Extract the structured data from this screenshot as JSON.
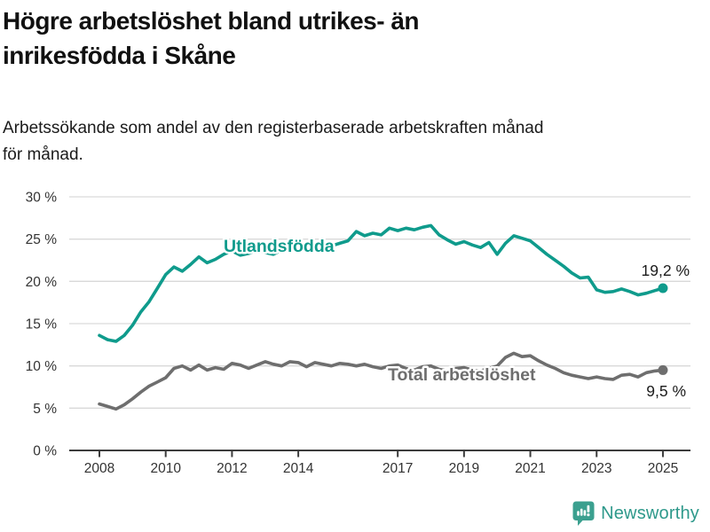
{
  "header": {
    "title_lines": [
      "Högre arbetslöshet bland utrikes- än",
      "inrikesfödda i Skåne"
    ],
    "subtitle_lines": [
      "Arbetssökande som andel av den registerbaserade arbetskraften månad",
      "för månad."
    ]
  },
  "footer": {
    "brand": "Newsworthy"
  },
  "colors": {
    "accent_teal": "#0f9b8c",
    "line_gray": "#6e6e6e",
    "logo_teal": "#3ba08f",
    "grid": "#d9d9d9",
    "axis": "#3c3c3c",
    "text_dark": "#1b1b1b"
  },
  "chart_data": {
    "type": "line",
    "title": "Högre arbetslöshet bland utrikes- än inrikesfödda i Skåne",
    "subtitle": "Arbetssökande som andel av den registerbaserade arbetskraften månad för månad.",
    "grid": "horizontal",
    "legend": "inline-labels",
    "x_axis": {
      "range": [
        2008,
        2025
      ],
      "ticks": [
        2008,
        2010,
        2012,
        2014,
        2017,
        2019,
        2021,
        2023,
        2025
      ],
      "tick_labels": [
        "2008",
        "2010",
        "2012",
        "2014",
        "2017",
        "2019",
        "2021",
        "2023",
        "2025"
      ]
    },
    "y_axis": {
      "range": [
        0,
        30
      ],
      "unit": "%",
      "ticks": [
        0,
        5,
        10,
        15,
        20,
        25,
        30
      ],
      "tick_labels": [
        "0 %",
        "5 %",
        "10 %",
        "15 %",
        "20 %",
        "25 %",
        "30 %"
      ]
    },
    "x": [
      2008,
      2008.25,
      2008.5,
      2008.75,
      2009,
      2009.25,
      2009.5,
      2009.75,
      2010,
      2010.25,
      2010.5,
      2010.75,
      2011,
      2011.25,
      2011.5,
      2011.75,
      2012,
      2012.25,
      2012.5,
      2012.75,
      2013,
      2013.25,
      2013.5,
      2013.75,
      2014,
      2014.25,
      2014.5,
      2014.75,
      2015,
      2015.25,
      2015.5,
      2015.75,
      2016,
      2016.25,
      2016.5,
      2016.75,
      2017,
      2017.25,
      2017.5,
      2017.75,
      2018,
      2018.25,
      2018.5,
      2018.75,
      2019,
      2019.25,
      2019.5,
      2019.75,
      2020,
      2020.25,
      2020.5,
      2020.75,
      2021,
      2021.25,
      2021.5,
      2021.75,
      2022,
      2022.25,
      2022.5,
      2022.75,
      2023,
      2023.25,
      2023.5,
      2023.75,
      2024,
      2024.25,
      2024.5,
      2024.75,
      2025
    ],
    "series": [
      {
        "name": "Utlandsfödda",
        "color": "#0f9b8c",
        "end_label": "19,2 %",
        "end_value": 19.2,
        "values": [
          13.6,
          13.1,
          12.9,
          13.6,
          14.8,
          16.4,
          17.6,
          19.2,
          20.8,
          21.7,
          21.2,
          22.0,
          22.9,
          22.2,
          22.6,
          23.2,
          23.6,
          23.1,
          23.3,
          23.7,
          23.4,
          23.2,
          23.7,
          24.1,
          23.8,
          23.6,
          24.1,
          24.3,
          24.2,
          24.5,
          24.8,
          25.9,
          25.4,
          25.7,
          25.5,
          26.3,
          26.0,
          26.3,
          26.1,
          26.4,
          26.6,
          25.5,
          24.9,
          24.4,
          24.7,
          24.3,
          24.0,
          24.6,
          23.2,
          24.5,
          25.4,
          25.1,
          24.8,
          24.0,
          23.2,
          22.5,
          21.8,
          21.0,
          20.4,
          20.5,
          19.0,
          18.7,
          18.8,
          19.1,
          18.8,
          18.4,
          18.6,
          18.9,
          19.2
        ]
      },
      {
        "name": "Total arbetslöshet",
        "color": "#6e6e6e",
        "end_label": "9,5 %",
        "end_value": 9.5,
        "values": [
          5.5,
          5.2,
          4.9,
          5.4,
          6.1,
          6.9,
          7.6,
          8.1,
          8.6,
          9.7,
          10.0,
          9.5,
          10.1,
          9.5,
          9.8,
          9.6,
          10.3,
          10.1,
          9.7,
          10.1,
          10.5,
          10.2,
          10.0,
          10.5,
          10.4,
          9.9,
          10.4,
          10.2,
          10.0,
          10.3,
          10.2,
          10.0,
          10.2,
          9.9,
          9.7,
          10.0,
          10.1,
          9.7,
          9.5,
          9.9,
          10.0,
          9.6,
          9.4,
          9.7,
          9.8,
          9.5,
          9.4,
          9.7,
          10.0,
          11.0,
          11.5,
          11.1,
          11.2,
          10.6,
          10.1,
          9.7,
          9.2,
          8.9,
          8.7,
          8.5,
          8.7,
          8.5,
          8.4,
          8.9,
          9.0,
          8.7,
          9.2,
          9.4,
          9.5
        ]
      }
    ]
  }
}
